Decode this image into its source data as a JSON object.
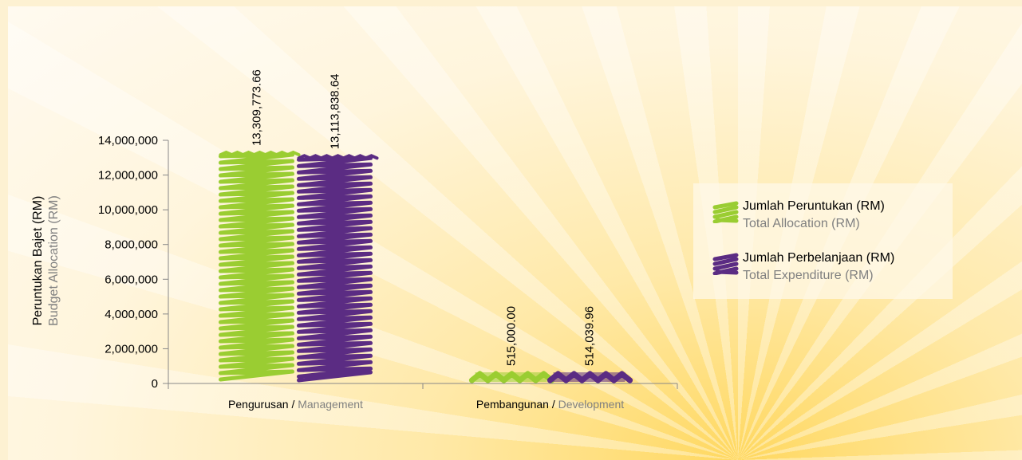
{
  "chart_data": {
    "type": "bar",
    "categories": [
      {
        "main": "Pengurusan",
        "sep": " / ",
        "sub": "Management"
      },
      {
        "main": "Pembangunan",
        "sep": " / ",
        "sub": "Development"
      }
    ],
    "series": [
      {
        "name": "Jumlah Peruntukan (RM)",
        "name_en": "Total Allocation (RM)",
        "color": "#9acd32",
        "values": [
          13309773.66,
          515000.0
        ],
        "labels": [
          "13,309,773.66",
          "515,000.00"
        ]
      },
      {
        "name": "Jumlah Perbelanjaan (RM)",
        "name_en": "Total Expenditure (RM)",
        "color": "#5b2c83",
        "values": [
          13113838.64,
          514039.96
        ],
        "labels": [
          "13,113,838.64",
          "514,039.96"
        ]
      }
    ],
    "ylabel": "Peruntukan Bajet (RM)",
    "ylabel_en": "Budget Allocation (RM)",
    "ylim": [
      0,
      14000000
    ],
    "yticks": [
      0,
      2000000,
      4000000,
      6000000,
      8000000,
      10000000,
      12000000,
      14000000
    ],
    "ytick_labels": [
      "0",
      "2,000,000",
      "4,000,000",
      "6,000,000",
      "8,000,000",
      "10,000,000",
      "12,000,000",
      "14,000,000"
    ],
    "legend_position": "right",
    "grid": false
  }
}
